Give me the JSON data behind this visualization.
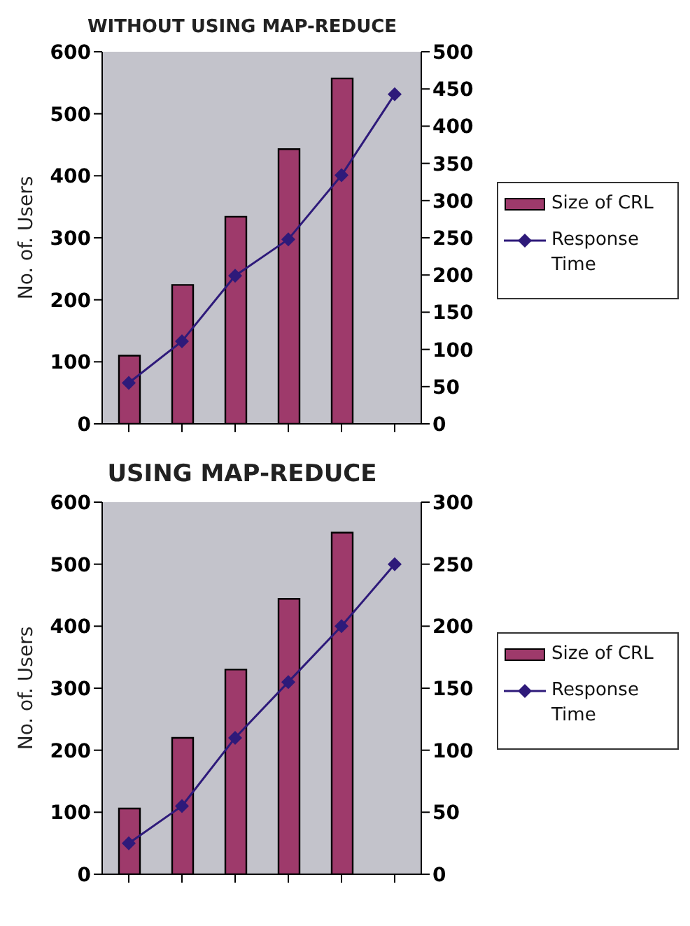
{
  "chart_data": [
    {
      "type": "bar",
      "title": "WITHOUT USING MAP-REDUCE",
      "ylabel": "No. of. Users",
      "categories": [
        null,
        null,
        null,
        null,
        null,
        null
      ],
      "series": [
        {
          "name": "Size of CRL",
          "color": "#9e3a6b",
          "values": [
            110,
            224,
            334,
            443,
            557,
            null
          ]
        },
        {
          "name": "Response Time",
          "type": "line",
          "axis": "y2",
          "color": "#2e1a7a",
          "marker": "diamond",
          "values": [
            55,
            111,
            199,
            248,
            334,
            443
          ]
        }
      ],
      "ylim": [
        0,
        600
      ],
      "yticks": [
        0,
        100,
        200,
        300,
        400,
        500,
        600
      ],
      "y2lim": [
        0,
        500
      ],
      "y2ticks": [
        0,
        50,
        100,
        150,
        200,
        250,
        300,
        350,
        400,
        450,
        500
      ],
      "grid": false,
      "legend": "right"
    },
    {
      "type": "bar",
      "title": "USING MAP-REDUCE",
      "ylabel": "No. of. Users",
      "categories": [
        null,
        null,
        null,
        null,
        null,
        null
      ],
      "series": [
        {
          "name": "Size of CRL",
          "color": "#9e3a6b",
          "values": [
            106,
            220,
            330,
            444,
            551,
            null
          ]
        },
        {
          "name": "Response Time",
          "type": "line",
          "axis": "y2",
          "color": "#2e1a7a",
          "marker": "diamond",
          "values": [
            25,
            55,
            110,
            155,
            200,
            250
          ]
        }
      ],
      "ylim": [
        0,
        600
      ],
      "yticks": [
        0,
        100,
        200,
        300,
        400,
        500,
        600
      ],
      "y2lim": [
        0,
        300
      ],
      "y2ticks": [
        0,
        50,
        100,
        150,
        200,
        250,
        300
      ],
      "grid": false,
      "legend": "right"
    }
  ]
}
